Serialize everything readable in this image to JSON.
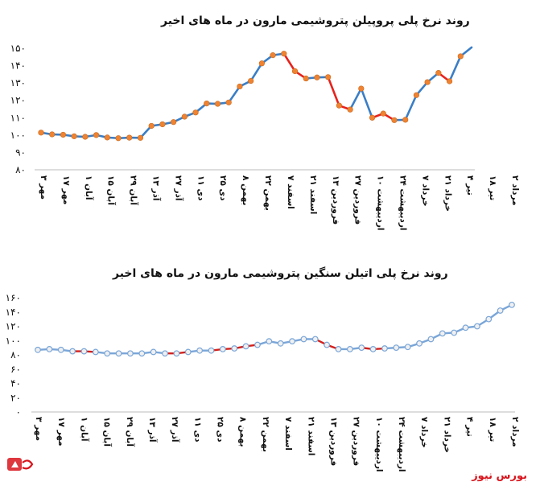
{
  "brand": {
    "text": "بورس نیوز"
  },
  "chart_data": [
    {
      "type": "line",
      "title": "روند نرخ پلی پروپیلن پتروشیمی مارون در ماه های اخیر",
      "ylim": [
        80,
        150
      ],
      "yticks": [
        "۸۰",
        "۹۰",
        "۱۰۰",
        "۱۱۰",
        "۱۲۰",
        "۱۳۰",
        "۱۴۰",
        "۱۵۰"
      ],
      "tick_labels": [
        "۳ مهر",
        "۱۷ مهر",
        "۱ آبان",
        "۱۵ آبان",
        "۲۹ آبان",
        "۱۳ آذر",
        "۲۷ آذر",
        "۱۱ دی",
        "۲۵ دی",
        "۸ بهمن",
        "۲۲ بهمن",
        "۷ اسفند",
        "۲۱ اسفند",
        "۱۳ فروردین",
        "۲۷ فروردین",
        "۱۰ اردیبهشت",
        "۲۴ اردیبهشت",
        "۷ خرداد",
        "۲۱ خرداد",
        "۴ تیر",
        "۱۸ تیر",
        "۲ مرداد"
      ],
      "values": [
        101.4,
        100.4,
        100.2,
        99.3,
        99.0,
        100.0,
        98.6,
        98.2,
        98.5,
        98.4,
        105.3,
        106.2,
        107.5,
        110.6,
        113.0,
        118.2,
        118.0,
        118.8,
        128.0,
        131.2,
        141.3,
        146.0,
        146.9,
        136.8,
        132.6,
        133.2,
        133.4,
        117.0,
        114.7,
        126.8,
        110.0,
        112.4,
        108.6,
        108.8,
        123.0,
        130.5,
        135.8,
        131.0,
        145.4,
        150.5
      ],
      "segment_colors": [
        "blue",
        "blue",
        "blue",
        "blue",
        "blue",
        "blue",
        "blue",
        "blue",
        "blue",
        "blue",
        "blue",
        "blue",
        "blue",
        "blue",
        "blue",
        "blue",
        "blue",
        "blue",
        "blue",
        "blue",
        "blue",
        "blue",
        "red",
        "red",
        "blue",
        "blue",
        "red",
        "red",
        "blue",
        "blue",
        "red",
        "red",
        "blue",
        "blue",
        "blue",
        "blue",
        "red",
        "blue",
        "blue"
      ],
      "colors": {
        "blue": "#3a7ec6",
        "red": "#e8211b",
        "marker": "#ef8332"
      }
    },
    {
      "type": "line",
      "title": "روند نرخ پلی اتیلن سنگین پتروشیمی مارون در ماه های اخیر",
      "ylim": [
        0,
        160
      ],
      "yticks": [
        "۰",
        "۲۰",
        "۴۰",
        "۶۰",
        "۸۰",
        "۱۰۰",
        "۱۲۰",
        "۱۴۰",
        "۱۶۰"
      ],
      "tick_labels": [
        "۳ مهر",
        "۱۷ مهر",
        "۱ آبان",
        "۱۵ آبان",
        "۲۹ آبان",
        "۱۳ آذر",
        "۲۷ آذر",
        "۱۱ دی",
        "۲۵ دی",
        "۸ بهمن",
        "۲۲ بهمن",
        "۷ اسفند",
        "۲۱ اسفند",
        "۱۳ فروردین",
        "۲۷ فروردین",
        "۱۰ اردیبهشت",
        "۲۴ اردیبهشت",
        "۷ خرداد",
        "۲۱ خرداد",
        "۴ تیر",
        "۱۸ تیر",
        "۲ مرداد"
      ],
      "values": [
        87.0,
        88.0,
        87.0,
        85.0,
        85.0,
        84.0,
        82.0,
        82.0,
        82.0,
        82.0,
        84.0,
        82.0,
        82.0,
        84.0,
        86.0,
        86.0,
        88.0,
        89.0,
        92.0,
        94.0,
        99.0,
        96.0,
        99.0,
        102.0,
        102.0,
        94.0,
        88.0,
        88.0,
        90.0,
        88.0,
        89.0,
        90.0,
        91.0,
        96.0,
        102.0,
        110.0,
        111.0,
        118.0,
        120.0,
        130.0,
        142.0,
        150.0
      ],
      "segment_colors": [
        "blue",
        "blue",
        "blue",
        "red",
        "red",
        "blue",
        "blue",
        "blue",
        "blue",
        "blue",
        "blue",
        "red",
        "red",
        "blue",
        "blue",
        "red",
        "red",
        "red",
        "red",
        "blue",
        "blue",
        "blue",
        "blue",
        "blue",
        "red",
        "red",
        "blue",
        "blue",
        "red",
        "red",
        "blue",
        "blue",
        "blue",
        "blue",
        "blue",
        "blue",
        "blue",
        "blue",
        "blue",
        "blue",
        "blue"
      ],
      "colors": {
        "blue": "#7aa6d8",
        "red": "#d4201b",
        "marker": "#f0f0f0"
      }
    }
  ]
}
